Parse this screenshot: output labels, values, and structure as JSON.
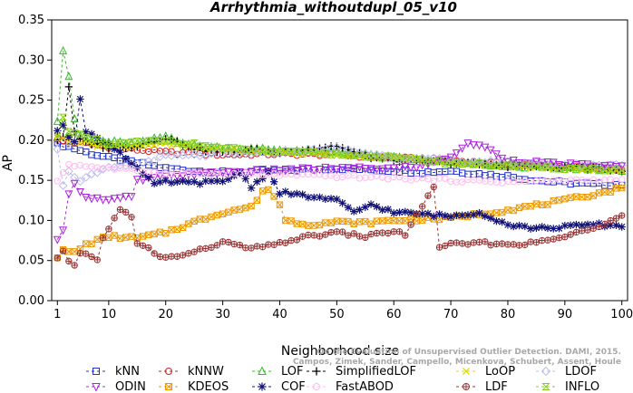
{
  "chart_data": {
    "type": "line",
    "title": "Arrhythmia_withoutdupl_05_v10",
    "xlabel": "Neighborhood size",
    "ylabel": "AP",
    "xlim": [
      0,
      101
    ],
    "ylim": [
      0,
      0.35
    ],
    "xticks": [
      1,
      10,
      20,
      30,
      40,
      50,
      60,
      70,
      80,
      90,
      100
    ],
    "yticks": [
      "0.00",
      "0.05",
      "0.10",
      "0.15",
      "0.20",
      "0.25",
      "0.30",
      "0.35"
    ],
    "grid": false,
    "legend_position": "bottom",
    "credit": [
      "Campos, Zimek, Sander, Campello, Micenkova, Schubert, Assent, Houle",
      "On the Evaluation of Unsupervised Outlier Detection. DAMI, 2015."
    ],
    "series": [
      {
        "name": "kNN",
        "color": "#2233cc",
        "marker": "square",
        "keypoints": [
          [
            1,
            0.195
          ],
          [
            3,
            0.192
          ],
          [
            6,
            0.185
          ],
          [
            10,
            0.178
          ],
          [
            15,
            0.172
          ],
          [
            20,
            0.165
          ],
          [
            25,
            0.162
          ],
          [
            30,
            0.16
          ],
          [
            40,
            0.162
          ],
          [
            50,
            0.165
          ],
          [
            60,
            0.162
          ],
          [
            65,
            0.16
          ],
          [
            70,
            0.162
          ],
          [
            75,
            0.158
          ],
          [
            80,
            0.155
          ],
          [
            85,
            0.15
          ],
          [
            90,
            0.147
          ],
          [
            95,
            0.145
          ],
          [
            100,
            0.145
          ]
        ]
      },
      {
        "name": "kNNW",
        "color": "#cc2222",
        "marker": "circle",
        "keypoints": [
          [
            1,
            0.2
          ],
          [
            3,
            0.198
          ],
          [
            6,
            0.196
          ],
          [
            10,
            0.192
          ],
          [
            15,
            0.188
          ],
          [
            20,
            0.185
          ],
          [
            30,
            0.182
          ],
          [
            40,
            0.183
          ],
          [
            50,
            0.182
          ],
          [
            60,
            0.178
          ],
          [
            70,
            0.175
          ],
          [
            80,
            0.17
          ],
          [
            90,
            0.167
          ],
          [
            100,
            0.163
          ]
        ]
      },
      {
        "name": "LOF",
        "color": "#33bb22",
        "marker": "triangle",
        "keypoints": [
          [
            1,
            0.225
          ],
          [
            2,
            0.312
          ],
          [
            3,
            0.28
          ],
          [
            4,
            0.225
          ],
          [
            5,
            0.205
          ],
          [
            7,
            0.2
          ],
          [
            10,
            0.198
          ],
          [
            15,
            0.195
          ],
          [
            20,
            0.205
          ],
          [
            25,
            0.193
          ],
          [
            30,
            0.19
          ],
          [
            40,
            0.188
          ],
          [
            50,
            0.185
          ],
          [
            60,
            0.178
          ],
          [
            70,
            0.172
          ],
          [
            80,
            0.168
          ],
          [
            90,
            0.165
          ],
          [
            100,
            0.163
          ]
        ]
      },
      {
        "name": "SimplifiedLOF",
        "color": "#000000",
        "marker": "plus",
        "keypoints": [
          [
            1,
            0.2
          ],
          [
            2,
            0.205
          ],
          [
            3,
            0.265
          ],
          [
            4,
            0.21
          ],
          [
            5,
            0.2
          ],
          [
            10,
            0.19
          ],
          [
            15,
            0.193
          ],
          [
            20,
            0.203
          ],
          [
            25,
            0.19
          ],
          [
            30,
            0.185
          ],
          [
            35,
            0.188
          ],
          [
            40,
            0.185
          ],
          [
            50,
            0.193
          ],
          [
            55,
            0.18
          ],
          [
            60,
            0.175
          ],
          [
            70,
            0.172
          ],
          [
            80,
            0.168
          ],
          [
            90,
            0.166
          ],
          [
            100,
            0.163
          ]
        ]
      },
      {
        "name": "LoOP",
        "color": "#dddd00",
        "marker": "x",
        "keypoints": [
          [
            1,
            0.205
          ],
          [
            3,
            0.2
          ],
          [
            10,
            0.192
          ],
          [
            20,
            0.195
          ],
          [
            30,
            0.188
          ],
          [
            40,
            0.185
          ],
          [
            50,
            0.182
          ],
          [
            60,
            0.178
          ],
          [
            70,
            0.172
          ],
          [
            80,
            0.168
          ],
          [
            90,
            0.165
          ],
          [
            100,
            0.162
          ]
        ]
      },
      {
        "name": "LDOF",
        "color": "#bbbbee",
        "marker": "diamond",
        "keypoints": [
          [
            1,
            0.19
          ],
          [
            2,
            0.145
          ],
          [
            3,
            0.16
          ],
          [
            5,
            0.15
          ],
          [
            10,
            0.165
          ],
          [
            15,
            0.17
          ],
          [
            20,
            0.18
          ],
          [
            30,
            0.182
          ],
          [
            40,
            0.185
          ],
          [
            50,
            0.19
          ],
          [
            60,
            0.178
          ],
          [
            70,
            0.175
          ],
          [
            80,
            0.172
          ],
          [
            90,
            0.17
          ],
          [
            100,
            0.168
          ]
        ]
      },
      {
        "name": "ODIN",
        "color": "#aa22dd",
        "marker": "triangle-down",
        "keypoints": [
          [
            1,
            0.075
          ],
          [
            2,
            0.09
          ],
          [
            3,
            0.135
          ],
          [
            4,
            0.145
          ],
          [
            6,
            0.13
          ],
          [
            10,
            0.125
          ],
          [
            14,
            0.13
          ],
          [
            15,
            0.15
          ],
          [
            20,
            0.155
          ],
          [
            25,
            0.158
          ],
          [
            30,
            0.16
          ],
          [
            40,
            0.163
          ],
          [
            50,
            0.165
          ],
          [
            60,
            0.165
          ],
          [
            65,
            0.168
          ],
          [
            70,
            0.18
          ],
          [
            73,
            0.195
          ],
          [
            75,
            0.195
          ],
          [
            78,
            0.183
          ],
          [
            80,
            0.175
          ],
          [
            90,
            0.17
          ],
          [
            100,
            0.167
          ]
        ]
      },
      {
        "name": "KDEOS",
        "color": "#ee9900",
        "marker": "square-x",
        "keypoints": [
          [
            1,
            0.055
          ],
          [
            2,
            0.062
          ],
          [
            4,
            0.06
          ],
          [
            6,
            0.07
          ],
          [
            10,
            0.08
          ],
          [
            15,
            0.078
          ],
          [
            20,
            0.085
          ],
          [
            25,
            0.098
          ],
          [
            30,
            0.11
          ],
          [
            35,
            0.117
          ],
          [
            37,
            0.135
          ],
          [
            38,
            0.14
          ],
          [
            40,
            0.12
          ],
          [
            41,
            0.1
          ],
          [
            45,
            0.095
          ],
          [
            50,
            0.098
          ],
          [
            55,
            0.097
          ],
          [
            60,
            0.1
          ],
          [
            70,
            0.103
          ],
          [
            80,
            0.113
          ],
          [
            90,
            0.125
          ],
          [
            100,
            0.14
          ]
        ]
      },
      {
        "name": "COF",
        "color": "#111177",
        "marker": "asterisk",
        "keypoints": [
          [
            1,
            0.21
          ],
          [
            2,
            0.22
          ],
          [
            3,
            0.205
          ],
          [
            4,
            0.2
          ],
          [
            5,
            0.253
          ],
          [
            6,
            0.21
          ],
          [
            10,
            0.195
          ],
          [
            12,
            0.185
          ],
          [
            15,
            0.165
          ],
          [
            18,
            0.145
          ],
          [
            20,
            0.148
          ],
          [
            25,
            0.147
          ],
          [
            30,
            0.148
          ],
          [
            33,
            0.16
          ],
          [
            35,
            0.142
          ],
          [
            38,
            0.16
          ],
          [
            40,
            0.135
          ],
          [
            45,
            0.13
          ],
          [
            50,
            0.125
          ],
          [
            53,
            0.11
          ],
          [
            56,
            0.12
          ],
          [
            60,
            0.11
          ],
          [
            65,
            0.108
          ],
          [
            70,
            0.105
          ],
          [
            75,
            0.11
          ],
          [
            80,
            0.095
          ],
          [
            85,
            0.09
          ],
          [
            90,
            0.092
          ],
          [
            95,
            0.095
          ],
          [
            100,
            0.093
          ]
        ]
      },
      {
        "name": "FastABOD",
        "color": "#ffbbee",
        "marker": "circle",
        "keypoints": [
          [
            1,
            0.15
          ],
          [
            3,
            0.17
          ],
          [
            10,
            0.165
          ],
          [
            20,
            0.16
          ],
          [
            30,
            0.158
          ],
          [
            40,
            0.157
          ],
          [
            50,
            0.155
          ],
          [
            60,
            0.153
          ],
          [
            70,
            0.15
          ],
          [
            80,
            0.148
          ],
          [
            90,
            0.15
          ],
          [
            100,
            0.15
          ]
        ]
      },
      {
        "name": "LDF",
        "color": "#993333",
        "marker": "circle-plus",
        "keypoints": [
          [
            1,
            0.052
          ],
          [
            2,
            0.06
          ],
          [
            3,
            0.048
          ],
          [
            4,
            0.045
          ],
          [
            5,
            0.06
          ],
          [
            7,
            0.055
          ],
          [
            8,
            0.05
          ],
          [
            9,
            0.08
          ],
          [
            10,
            0.09
          ],
          [
            12,
            0.113
          ],
          [
            14,
            0.105
          ],
          [
            15,
            0.07
          ],
          [
            17,
            0.065
          ],
          [
            19,
            0.055
          ],
          [
            20,
            0.053
          ],
          [
            25,
            0.06
          ],
          [
            30,
            0.073
          ],
          [
            35,
            0.065
          ],
          [
            38,
            0.068
          ],
          [
            40,
            0.072
          ],
          [
            45,
            0.08
          ],
          [
            50,
            0.085
          ],
          [
            55,
            0.08
          ],
          [
            60,
            0.087
          ],
          [
            62,
            0.082
          ],
          [
            67,
            0.143
          ],
          [
            68,
            0.065
          ],
          [
            70,
            0.07
          ],
          [
            75,
            0.072
          ],
          [
            80,
            0.07
          ],
          [
            85,
            0.072
          ],
          [
            90,
            0.08
          ],
          [
            95,
            0.09
          ],
          [
            100,
            0.108
          ]
        ]
      },
      {
        "name": "INFLO",
        "color": "#88cc22",
        "marker": "hourglass",
        "keypoints": [
          [
            1,
            0.205
          ],
          [
            2,
            0.23
          ],
          [
            3,
            0.21
          ],
          [
            10,
            0.195
          ],
          [
            20,
            0.2
          ],
          [
            30,
            0.19
          ],
          [
            40,
            0.185
          ],
          [
            50,
            0.183
          ],
          [
            60,
            0.178
          ],
          [
            70,
            0.172
          ],
          [
            80,
            0.168
          ],
          [
            90,
            0.165
          ],
          [
            100,
            0.163
          ]
        ]
      }
    ]
  }
}
